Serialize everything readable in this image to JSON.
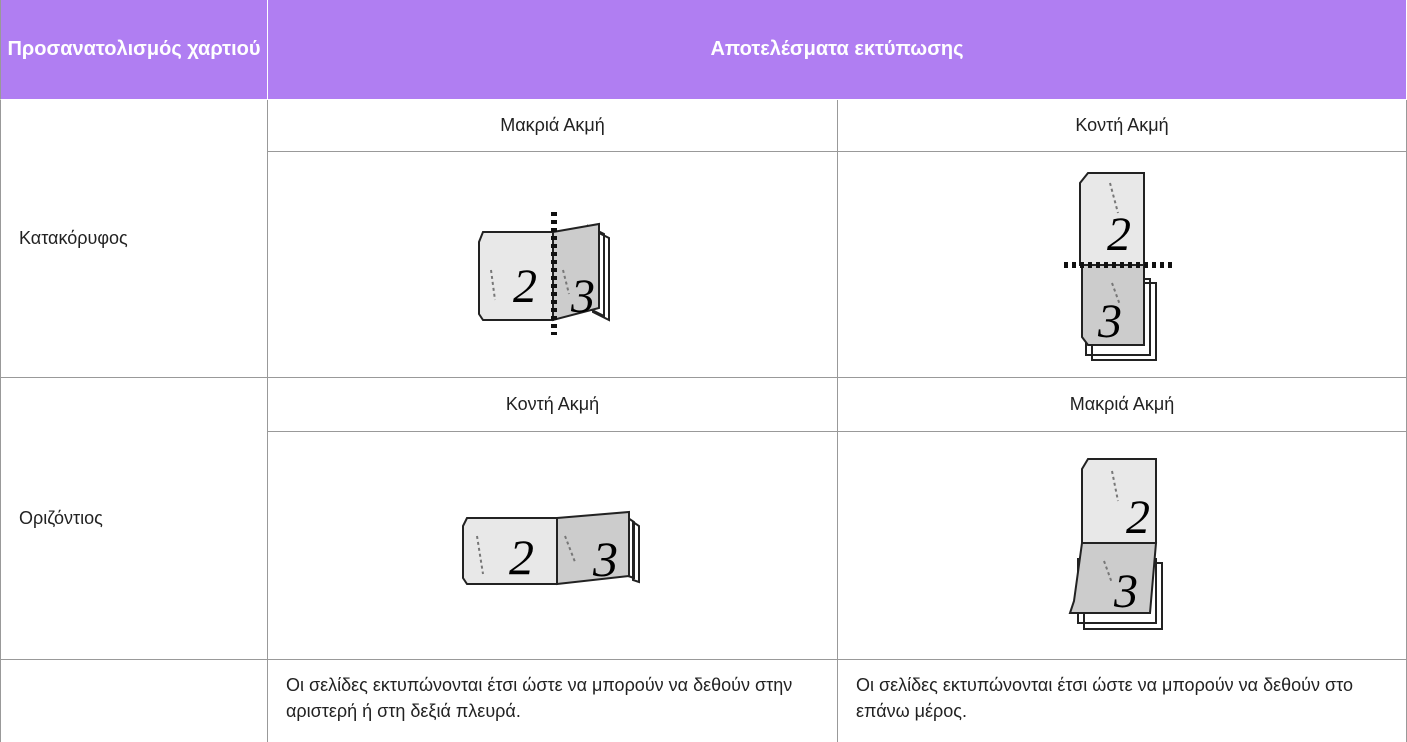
{
  "header": {
    "orientation": "Προσανατολισμός χαρτιού",
    "results": "Αποτελέσματα εκτύπωσης"
  },
  "rows": [
    {
      "orientation": "Κατακόρυφος",
      "bindings": [
        "Μακριά Ακμή",
        "Κοντή Ακμή"
      ]
    },
    {
      "orientation": "Οριζόντιος",
      "bindings": [
        "Κοντή Ακμή",
        "Μακριά Ακμή"
      ]
    }
  ],
  "notes": [
    "Οι σελίδες εκτυπώνονται έτσι ώστε να μπορούν να δεθούν στην αριστερή ή στη δεξιά πλευρά.",
    "Οι σελίδες εκτυπώνονται έτσι ώστε να μπορούν να δεθούν στο επάνω μέρος."
  ],
  "illustration_page_numbers": [
    "2",
    "3"
  ]
}
